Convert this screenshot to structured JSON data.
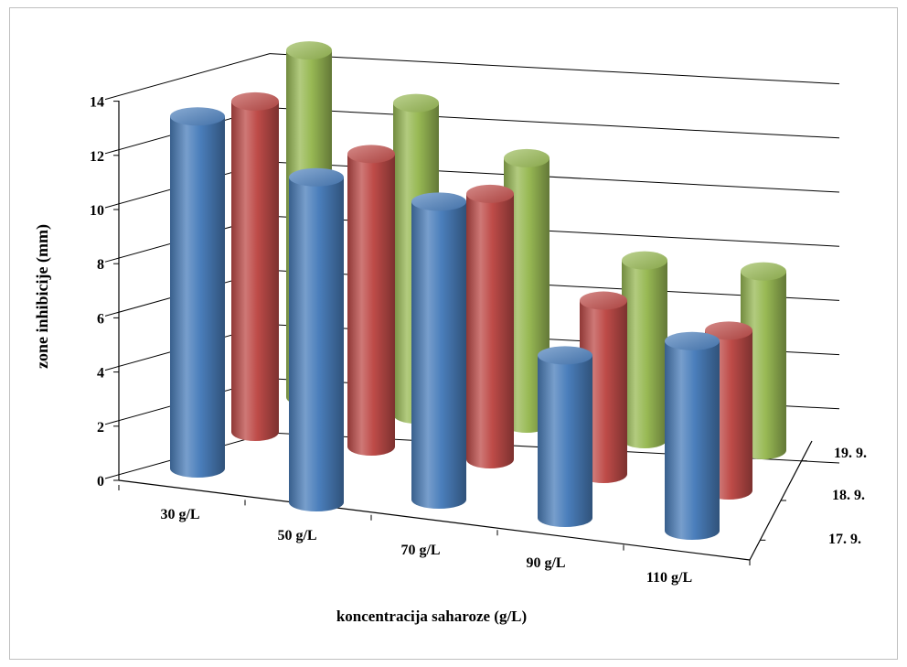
{
  "chart_data": {
    "type": "bar",
    "style": "3d-cylinder",
    "title": "",
    "xlabel": "koncentracija saharoze (g/L)",
    "ylabel": "zone inhibicije (mm)",
    "zlabel": "",
    "categories": [
      "30 g/L",
      "50 g/L",
      "70 g/L",
      "90 g/L",
      "110 g/L"
    ],
    "series": [
      {
        "name": "17. 9.",
        "color": "#4a7ebb",
        "values": [
          13,
          12,
          11,
          6,
          7
        ]
      },
      {
        "name": "18. 9.",
        "color": "#be4b48",
        "values": [
          12.2,
          10.8,
          9.8,
          6.4,
          5.9
        ]
      },
      {
        "name": "19. 9.",
        "color": "#98b954",
        "values": [
          12.8,
          11.5,
          9.8,
          6.6,
          6.6
        ]
      }
    ],
    "ylim": [
      0,
      14
    ],
    "y_ticks": [
      "0",
      "2",
      "4",
      "6",
      "8",
      "10",
      "12",
      "14"
    ],
    "grid": true,
    "legend": "depth-axis"
  }
}
